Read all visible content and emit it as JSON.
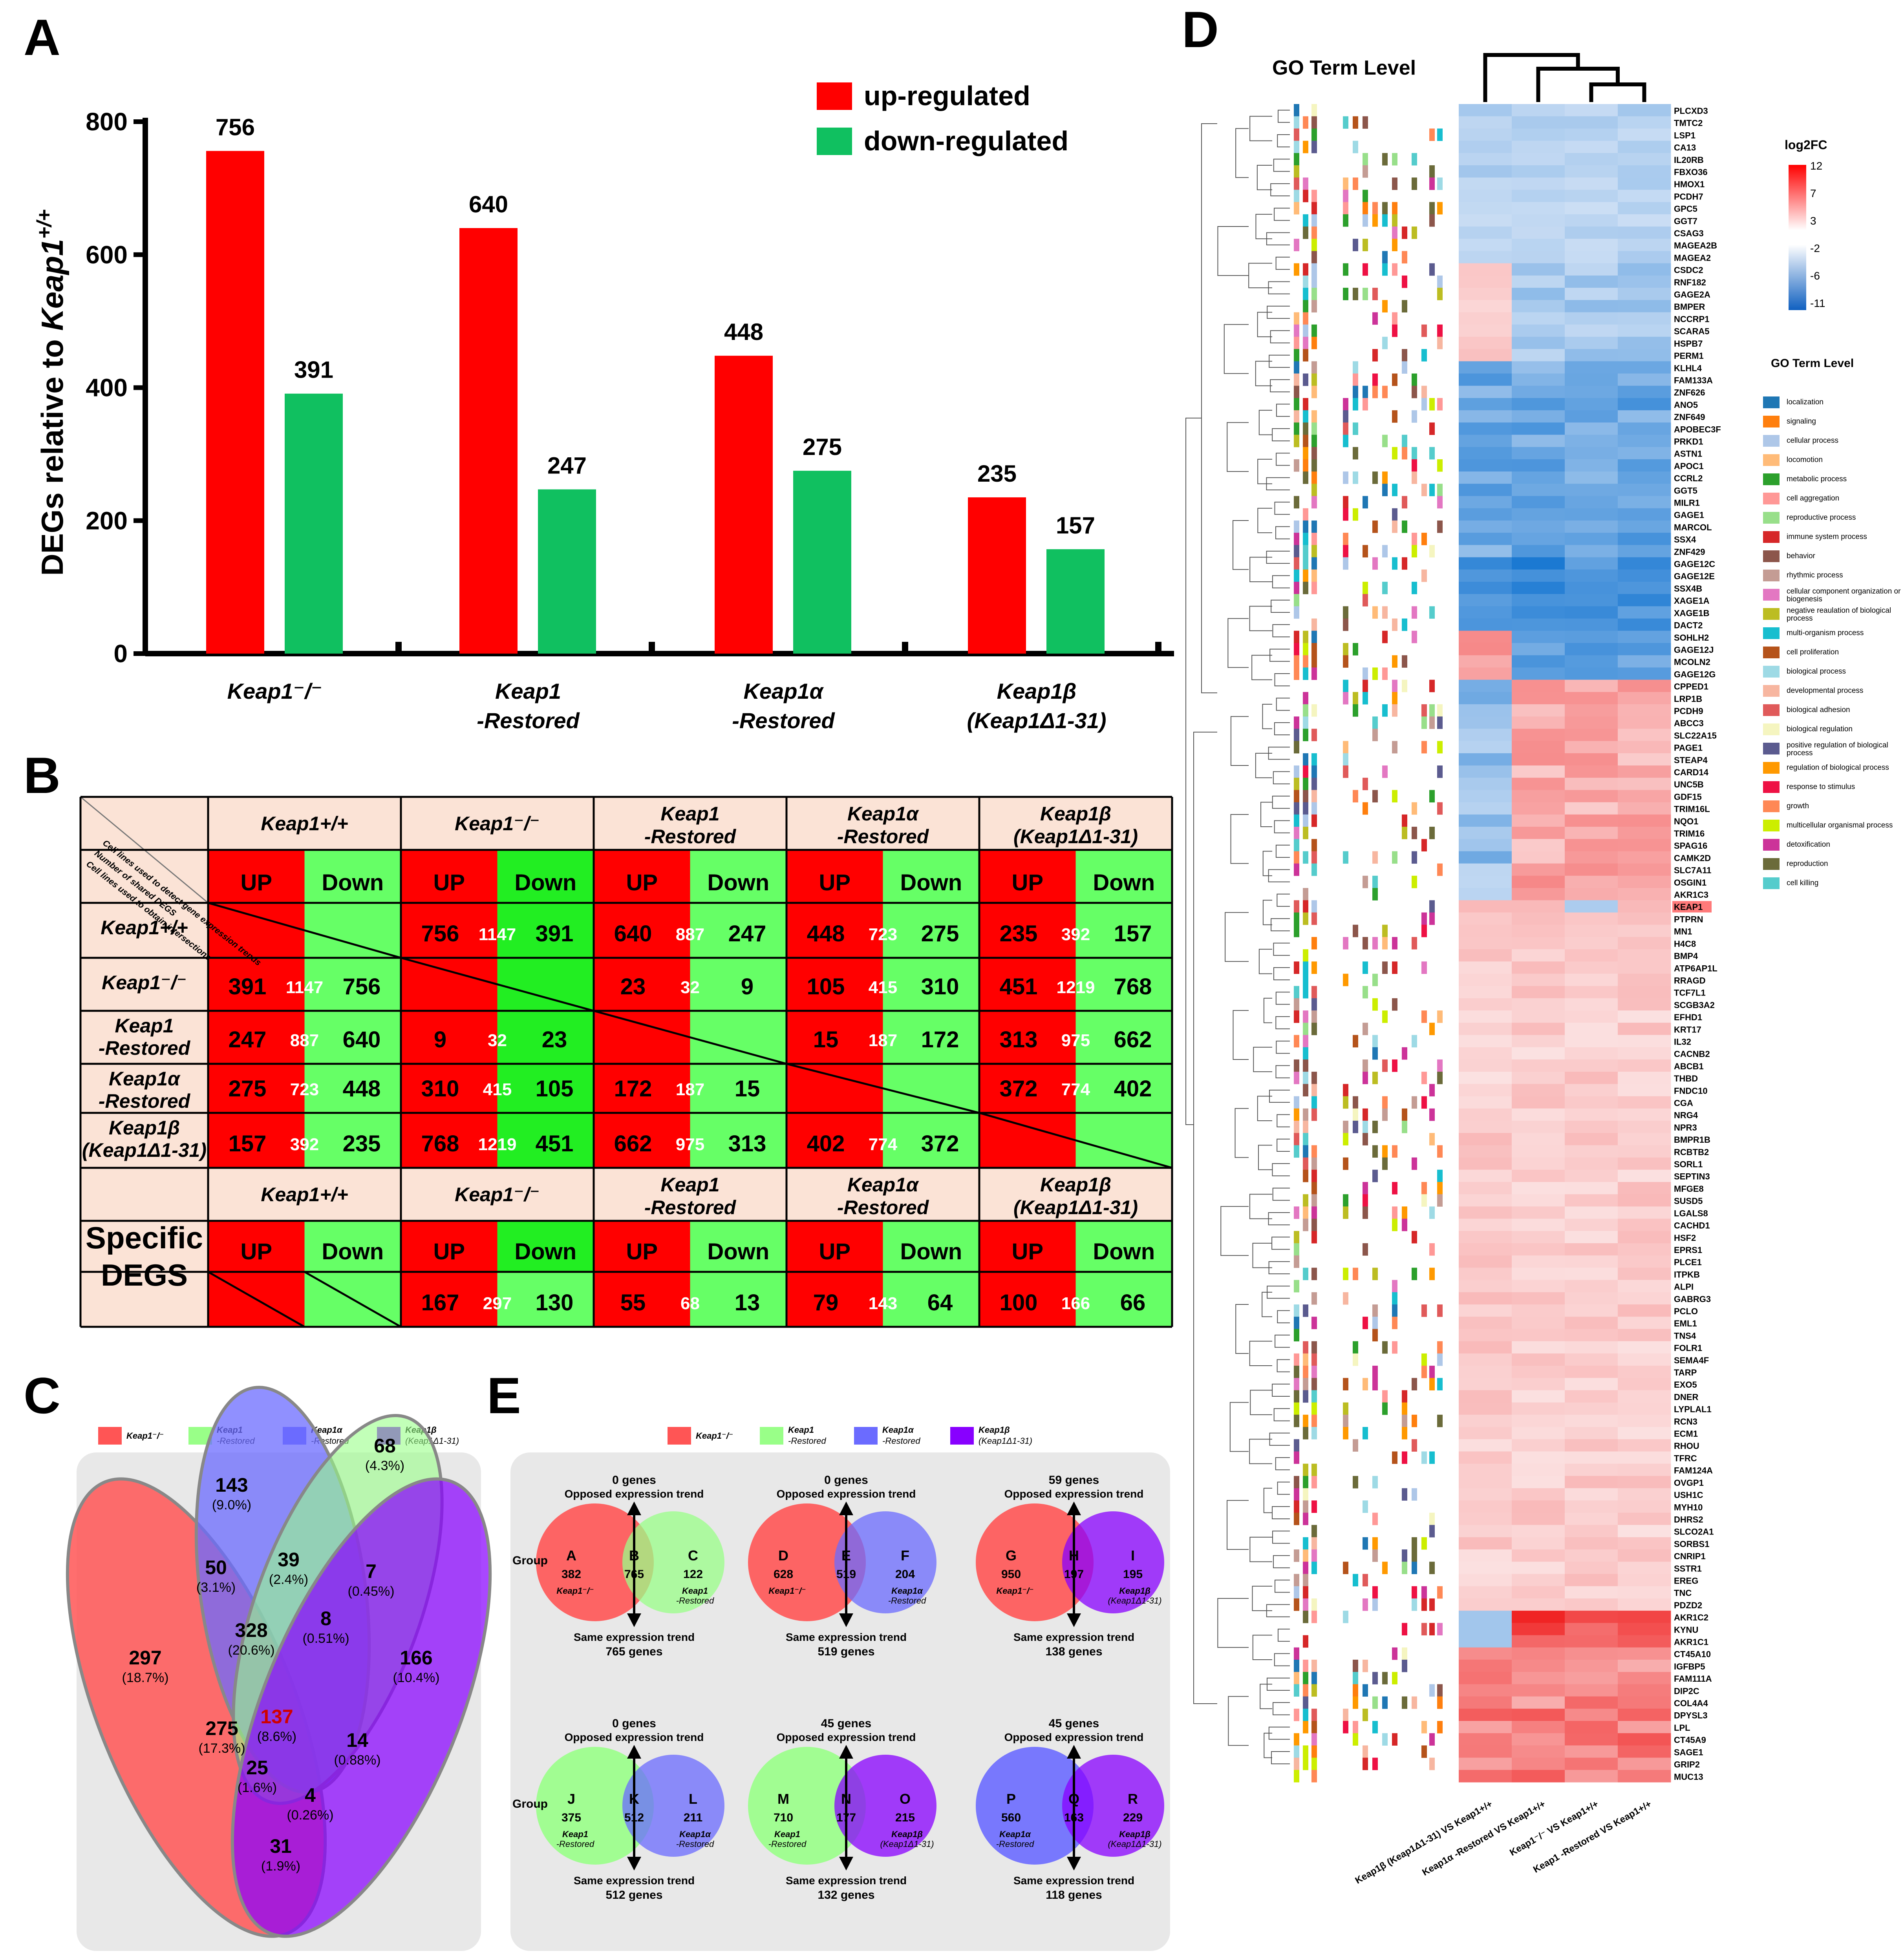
{
  "panels": {
    "a": "A",
    "b": "B",
    "c": "C",
    "d": "D",
    "e": "E"
  },
  "colors": {
    "up": "#ff0000",
    "down": "#10c060",
    "down_cell": "#66ff66",
    "down_bright": "#22ee22",
    "header_bg": "#fbe3d6",
    "venn_bg": "#e8e8e8"
  },
  "chart_data": [
    {
      "type": "bar",
      "title": "",
      "ylabel_prefix": "DEGs relative to ",
      "ylabel_gene": "Keap1",
      "ylabel_sup": "+/+",
      "ylim": [
        0,
        800
      ],
      "yticks": [
        "0",
        "200",
        "400",
        "600",
        "800"
      ],
      "categories": [
        "Keap1⁻/⁻",
        "Keap1",
        "Keap1α",
        "Keap1β"
      ],
      "categories_line2": [
        "",
        "-Restored",
        "-Restored",
        "(Keap1Δ1-31)"
      ],
      "series": [
        {
          "name": "up-regulated",
          "values": [
            756,
            640,
            448,
            235
          ],
          "labels": [
            "756",
            "640",
            "448",
            "235"
          ]
        },
        {
          "name": "down-regulated",
          "values": [
            391,
            247,
            275,
            157
          ],
          "labels": [
            "391",
            "247",
            "275",
            "157"
          ]
        }
      ]
    },
    {
      "type": "heatmap",
      "title": "log2FC",
      "scale_ticks": [
        "12",
        "7",
        "3",
        "-2",
        "-6",
        "-11"
      ],
      "columns": [
        "Keap1β (Keap1Δ1-31) VS Keap1+/+",
        "Keap1α -Restored VS Keap1+/+",
        "Keap1⁻/⁻ VS Keap1+/+",
        "Keap1 -Restored VS Keap1+/+"
      ],
      "rows": [
        "PLCXD3",
        "TMTC2",
        "LSP1",
        "CA13",
        "IL20RB",
        "FBXO36",
        "HMOX1",
        "PCDH7",
        "GPC5",
        "GGT7",
        "CSAG3",
        "MAGEA2B",
        "MAGEA2",
        "CSDC2",
        "RNF182",
        "GAGE2A",
        "BMPER",
        "NCCRP1",
        "SCARA5",
        "HSPB7",
        "PERM1",
        "KLHL4",
        "FAM133A",
        "ZNF626",
        "ANO5",
        "ZNF649",
        "APOBEC3F",
        "PRKD1",
        "ASTN1",
        "APOC1",
        "CCRL2",
        "GGT5",
        "MILR1",
        "GAGE1",
        "MARCOL",
        "SSX4",
        "ZNF429",
        "GAGE12C",
        "GAGE12E",
        "SSX4B",
        "XAGE1A",
        "XAGE1B",
        "DACT2",
        "SOHLH2",
        "GAGE12J",
        "MCOLN2",
        "GAGE12G",
        "CPPED1",
        "LRP1B",
        "PCDH9",
        "ABCC3",
        "SLC22A15",
        "PAGE1",
        "STEAP4",
        "CARD14",
        "UNC5B",
        "GDF15",
        "TRIM16L",
        "NQO1",
        "TRIM16",
        "SPAG16",
        "CAMK2D",
        "SLC7A11",
        "OSGIN1",
        "AKR1C3",
        "KEAP1",
        "PTPRN",
        "MN1",
        "H4C8",
        "BMP4",
        "ATP6AP1L",
        "RRAGD",
        "TCF7L1",
        "SCGB3A2",
        "EFHD1",
        "KRT17",
        "IL32",
        "CACNB2",
        "ABCB1",
        "THBD",
        "FNDC10",
        "CGA",
        "NRG4",
        "NPR3",
        "BMPR1B",
        "RCBTB2",
        "SORL1",
        "SEPTIN3",
        "MFGE8",
        "SUSD5",
        "LGALS8",
        "CACHD1",
        "HSF2",
        "EPRS1",
        "PLCE1",
        "ITPKB",
        "ALPI",
        "GABRG3",
        "PCLO",
        "EML1",
        "TNS4",
        "FOLR1",
        "SEMA4F",
        "TARP",
        "EXO5",
        "DNER",
        "LYPLAL1",
        "RCN3",
        "ECM1",
        "RHOU",
        "TFRC",
        "FAM124A",
        "OVGP1",
        "USH1C",
        "MYH10",
        "DHRS2",
        "SLCO2A1",
        "SORBS1",
        "CNRIP1",
        "SSTR1",
        "EREG",
        "TNC",
        "PDZD2",
        "AKR1C2",
        "KYNU",
        "AKR1C1",
        "CT45A10",
        "IGFBP5",
        "FAM111A",
        "DIP2C",
        "COL4A4",
        "DPYSL3",
        "LPL",
        "CT45A9",
        "SAGE1",
        "GRIP2",
        "MUC13"
      ]
    }
  ],
  "panel_a": {
    "legend": [
      "up-regulated",
      "down-regulated"
    ]
  },
  "panel_b": {
    "corner": [
      "Cell lines used to detect gene expression trends",
      "Number of shared DEGS",
      "Cell lines used to obtain intersections"
    ],
    "col_headers": [
      [
        "Keap1+/+",
        ""
      ],
      [
        "Keap1⁻/⁻",
        ""
      ],
      [
        "Keap1",
        "-Restored"
      ],
      [
        "Keap1α",
        "-Restored"
      ],
      [
        "Keap1β",
        "(Keap1Δ1-31)"
      ]
    ],
    "up": "UP",
    "down": "Down",
    "row_headers": [
      [
        "Keap1+/+",
        ""
      ],
      [
        "Keap1⁻/⁻",
        ""
      ],
      [
        "Keap1",
        "-Restored"
      ],
      [
        "Keap1α",
        "-Restored"
      ],
      [
        "Keap1β",
        "(Keap1Δ1-31)"
      ]
    ],
    "cells": [
      [
        null,
        [
          "756",
          "1147",
          "391"
        ],
        [
          "640",
          "887",
          "247"
        ],
        [
          "448",
          "723",
          "275"
        ],
        [
          "235",
          "392",
          "157"
        ]
      ],
      [
        [
          "391",
          "1147",
          "756"
        ],
        null,
        [
          "23",
          "32",
          "9"
        ],
        [
          "105",
          "415",
          "310"
        ],
        [
          "451",
          "1219",
          "768"
        ]
      ],
      [
        [
          "247",
          "887",
          "640"
        ],
        [
          "9",
          "32",
          "23"
        ],
        null,
        [
          "15",
          "187",
          "172"
        ],
        [
          "313",
          "975",
          "662"
        ]
      ],
      [
        [
          "275",
          "723",
          "448"
        ],
        [
          "310",
          "415",
          "105"
        ],
        [
          "172",
          "187",
          "15"
        ],
        null,
        [
          "372",
          "774",
          "402"
        ]
      ],
      [
        [
          "157",
          "392",
          "235"
        ],
        [
          "768",
          "1219",
          "451"
        ],
        [
          "662",
          "975",
          "313"
        ],
        [
          "402",
          "774",
          "372"
        ],
        null
      ]
    ],
    "specific_label": [
      "Specific",
      "DEGS"
    ],
    "specific": [
      null,
      [
        "167",
        "297",
        "130"
      ],
      [
        "55",
        "68",
        "13"
      ],
      [
        "79",
        "143",
        "64"
      ],
      [
        "100",
        "166",
        "66"
      ]
    ]
  },
  "panel_c": {
    "legend": [
      [
        "Keap1⁻/⁻",
        ""
      ],
      [
        "Keap1",
        "-Restored"
      ],
      [
        "Keap1α",
        "-Restored"
      ],
      [
        "Keap1β",
        "(Keap1Δ1-31)"
      ]
    ],
    "regions": [
      {
        "n": "297",
        "p": "(18.7%)"
      },
      {
        "n": "143",
        "p": "(9.0%)"
      },
      {
        "n": "68",
        "p": "(4.3%)"
      },
      {
        "n": "166",
        "p": "(10.4%)"
      },
      {
        "n": "50",
        "p": "(3.1%)"
      },
      {
        "n": "39",
        "p": "(2.4%)"
      },
      {
        "n": "7",
        "p": "(0.45%)"
      },
      {
        "n": "328",
        "p": "(20.6%)"
      },
      {
        "n": "8",
        "p": "(0.51%)"
      },
      {
        "n": "137",
        "p": "(8.6%)"
      },
      {
        "n": "275",
        "p": "(17.3%)"
      },
      {
        "n": "14",
        "p": "(0.88%)"
      },
      {
        "n": "25",
        "p": "(1.6%)"
      },
      {
        "n": "4",
        "p": "(0.26%)"
      },
      {
        "n": "31",
        "p": "(1.9%)"
      }
    ]
  },
  "panel_d": {
    "go_header": "GO  Term Level",
    "scale_title": "log2FC",
    "go_legend_title": "GO  Term Level",
    "go_terms": [
      "localization",
      "signaling",
      "cellular process",
      "locomotion",
      "metabolic process",
      "cell aggregation",
      "reproductive process",
      "immune system process",
      "behavior",
      "rhythmic process",
      "cellular component organization or biogenesis",
      "negative reaulation of biological process",
      "multi-organism process",
      "cell proliferation",
      "biological process",
      "developmental process",
      "biological adhesion",
      "biological regulation",
      "positive regulation of biological process",
      "regulation of biological process",
      "response to stimulus",
      "growth",
      "multicellular organismal process",
      "detoxification",
      "reproduction",
      "cell killing"
    ],
    "go_colors": [
      "#1f77b4",
      "#ff7f0e",
      "#aec7e8",
      "#ffbb78",
      "#2ca02c",
      "#ff9896",
      "#98df8a",
      "#d62728",
      "#8c564b",
      "#c49c94",
      "#e377c2",
      "#bcbd22",
      "#17becf",
      "#b5531b",
      "#9edae5",
      "#f7b6a0",
      "#e05a5a",
      "#f5f5c0",
      "#5b5b8f",
      "#ff9900",
      "#ee1144",
      "#ff8855",
      "#ccee00",
      "#cc3399",
      "#6b6b3a",
      "#55cccc"
    ],
    "vs": "VS"
  },
  "panel_e": {
    "legend": [
      [
        "Keap1⁻/⁻",
        ""
      ],
      [
        "Keap1",
        "-Restored"
      ],
      [
        "Keap1α",
        "-Restored"
      ],
      [
        "Keap1β",
        "(Keap1Δ1-31)"
      ]
    ],
    "group": "Group",
    "opposed": "Opposed expression trend",
    "same": "Same expression trend",
    "diagrams": [
      {
        "top": "0 genes",
        "bottom": "765 genes",
        "letters": [
          "A",
          "B",
          "C"
        ],
        "nums": [
          "382",
          "765",
          "122"
        ],
        "lab1": [
          "Keap1⁻/⁻",
          ""
        ],
        "lab2": [
          "Keap1",
          "-Restored"
        ]
      },
      {
        "top": "0 genes",
        "bottom": "519 genes",
        "letters": [
          "D",
          "E",
          "F"
        ],
        "nums": [
          "628",
          "519",
          "204"
        ],
        "lab1": [
          "Keap1⁻/⁻",
          ""
        ],
        "lab2": [
          "Keap1α",
          "-Restored"
        ]
      },
      {
        "top": "59 genes",
        "bottom": "138 genes",
        "letters": [
          "G",
          "H",
          "I"
        ],
        "nums": [
          "950",
          "197",
          "195"
        ],
        "lab1": [
          "Keap1⁻/⁻",
          ""
        ],
        "lab2": [
          "Keap1β",
          "(Keap1Δ1-31)"
        ]
      },
      {
        "top": "0 genes",
        "bottom": "512 genes",
        "letters": [
          "J",
          "K",
          "L"
        ],
        "nums": [
          "375",
          "512",
          "211"
        ],
        "lab1": [
          "Keap1",
          "-Restored"
        ],
        "lab2": [
          "Keap1α",
          "-Restored"
        ]
      },
      {
        "top": "45 genes",
        "bottom": "132 genes",
        "letters": [
          "M",
          "N",
          "O"
        ],
        "nums": [
          "710",
          "177",
          "215"
        ],
        "lab1": [
          "Keap1",
          "-Restored"
        ],
        "lab2": [
          "Keap1β",
          "(Keap1Δ1-31)"
        ]
      },
      {
        "top": "45 genes",
        "bottom": "118 genes",
        "letters": [
          "P",
          "Q",
          "R"
        ],
        "nums": [
          "560",
          "163",
          "229"
        ],
        "lab1": [
          "Keap1α",
          "-Restored"
        ],
        "lab2": [
          "Keap1β",
          "(Keap1Δ1-31)"
        ]
      }
    ]
  }
}
